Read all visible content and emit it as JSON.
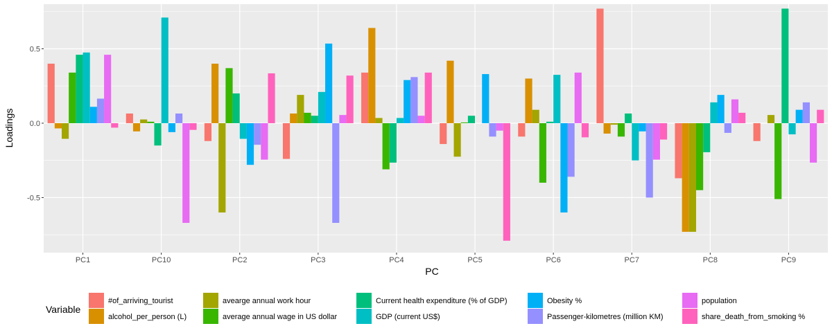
{
  "chart_data": {
    "type": "bar",
    "xlabel": "PC",
    "ylabel": "Loadings",
    "ylim": [
      -0.87,
      0.8
    ],
    "yticks": [
      -0.5,
      0.0,
      0.5
    ],
    "ytick_labels": [
      "-0.5",
      "0.0",
      "0.5"
    ],
    "grid": true,
    "legend_position": "bottom",
    "legend_title": "Variable",
    "categories": [
      "PC1",
      "PC10",
      "PC2",
      "PC3",
      "PC4",
      "PC5",
      "PC6",
      "PC7",
      "PC8",
      "PC9"
    ],
    "series": [
      {
        "name": "#of_arriving_tourist",
        "color": "#F8766D",
        "values": [
          0.4,
          0.065,
          -0.12,
          -0.24,
          0.34,
          -0.14,
          -0.09,
          0.77,
          -0.37,
          -0.12
        ]
      },
      {
        "name": "alcohol_per_person (L)",
        "color": "#D89000",
        "values": [
          -0.035,
          -0.055,
          0.4,
          0.065,
          0.64,
          0.42,
          0.3,
          -0.07,
          -0.73,
          0.0
        ]
      },
      {
        "name": "avearge annual work hour",
        "color": "#A3A500",
        "values": [
          -0.105,
          0.025,
          -0.6,
          0.19,
          0.035,
          -0.225,
          0.09,
          -0.01,
          -0.73,
          0.055
        ]
      },
      {
        "name": "average annual wage in US dollar",
        "color": "#39B600",
        "values": [
          0.34,
          0.01,
          0.37,
          0.07,
          -0.31,
          0.005,
          -0.4,
          -0.09,
          -0.45,
          -0.51
        ]
      },
      {
        "name": "Current health expenditure (% of GDP)",
        "color": "#00BF7D",
        "values": [
          0.46,
          -0.15,
          0.2,
          0.05,
          -0.265,
          0.05,
          0.01,
          0.065,
          -0.195,
          0.77
        ]
      },
      {
        "name": "GDP (current US$)",
        "color": "#00BFC4",
        "values": [
          0.475,
          0.71,
          -0.105,
          0.21,
          0.035,
          0.0,
          0.325,
          -0.25,
          0.14,
          -0.075
        ]
      },
      {
        "name": "Obesity %",
        "color": "#00B0F6",
        "values": [
          0.11,
          -0.06,
          -0.28,
          0.535,
          0.29,
          0.33,
          -0.6,
          -0.055,
          0.19,
          0.09
        ]
      },
      {
        "name": "Passenger-kilometres (million KM)",
        "color": "#9590FF",
        "values": [
          0.165,
          0.065,
          -0.145,
          -0.67,
          0.31,
          -0.09,
          -0.36,
          -0.5,
          -0.065,
          0.14
        ]
      },
      {
        "name": "population",
        "color": "#E76BF3",
        "values": [
          0.46,
          -0.67,
          -0.245,
          0.055,
          0.05,
          -0.05,
          0.34,
          -0.245,
          0.16,
          -0.265
        ]
      },
      {
        "name": "share_death_from_smoking %",
        "color": "#FF62BC",
        "values": [
          -0.03,
          -0.045,
          0.335,
          0.32,
          0.34,
          -0.79,
          -0.095,
          -0.11,
          0.07,
          0.09
        ]
      }
    ]
  }
}
